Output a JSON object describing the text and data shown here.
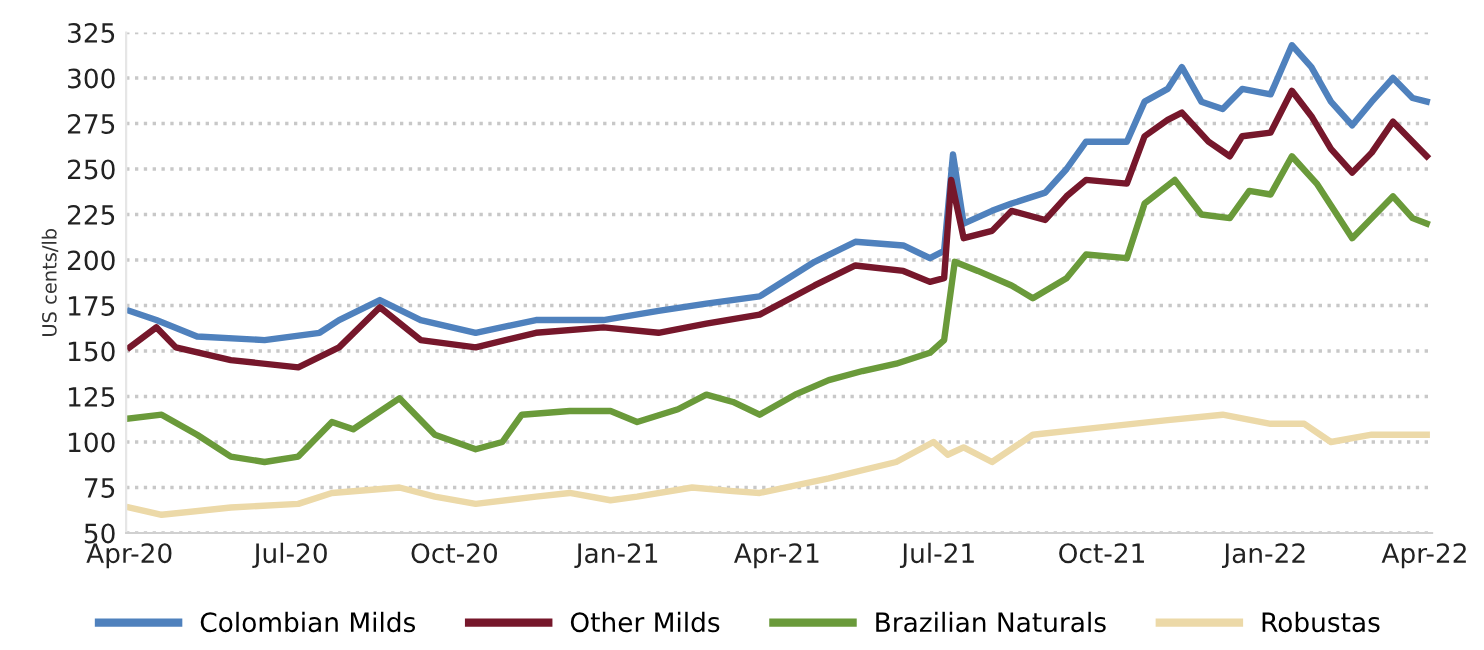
{
  "chart_data": {
    "type": "line",
    "ylabel": "US cents/lb",
    "xlim": [
      "2020-03-30",
      "2022-04-05"
    ],
    "xticks": [
      {
        "value": "2020-04-01",
        "label": "Apr-20"
      },
      {
        "value": "2020-07-01",
        "label": "Jul-20"
      },
      {
        "value": "2020-10-01",
        "label": "Oct-20"
      },
      {
        "value": "2021-01-01",
        "label": "Jan-21"
      },
      {
        "value": "2021-04-01",
        "label": "Apr-21"
      },
      {
        "value": "2021-07-01",
        "label": "Jul-21"
      },
      {
        "value": "2021-10-01",
        "label": "Oct-21"
      },
      {
        "value": "2022-01-01",
        "label": "Jan-22"
      },
      {
        "value": "2022-04-01",
        "label": "Apr-22"
      }
    ],
    "ylim": [
      50,
      325
    ],
    "yticks": [
      50,
      75,
      100,
      125,
      150,
      175,
      200,
      225,
      250,
      275,
      300,
      325
    ],
    "grid": "y",
    "legend": "bottom",
    "marker": "none",
    "line_style": "solid",
    "series": [
      {
        "name": "Colombian Milds",
        "color": "#4f81bd",
        "x": [
          "2020-04-01",
          "2020-04-16",
          "2020-05-09",
          "2020-06-16",
          "2020-07-17",
          "2020-07-28",
          "2020-08-20",
          "2020-09-12",
          "2020-10-13",
          "2020-11-16",
          "2020-12-24",
          "2021-01-24",
          "2021-02-20",
          "2021-03-22",
          "2021-04-22",
          "2021-05-15",
          "2021-06-11",
          "2021-06-26",
          "2021-07-04",
          "2021-07-09",
          "2021-07-15",
          "2021-07-31",
          "2021-08-11",
          "2021-08-30",
          "2021-09-11",
          "2021-09-22",
          "2021-10-15",
          "2021-10-25",
          "2021-11-07",
          "2021-11-15",
          "2021-11-26",
          "2021-12-08",
          "2021-12-19",
          "2022-01-04",
          "2022-01-16",
          "2022-01-27",
          "2022-02-07",
          "2022-02-19",
          "2022-03-02",
          "2022-03-14",
          "2022-03-25",
          "2022-04-02"
        ],
        "values": [
          172,
          167,
          158,
          156,
          160,
          167,
          178,
          167,
          160,
          167,
          167,
          172,
          176,
          180,
          199,
          210,
          208,
          201,
          205,
          258,
          220,
          227,
          231,
          237,
          250,
          265,
          265,
          287,
          294,
          306,
          287,
          283,
          294,
          291,
          318,
          306,
          287,
          274,
          287,
          300,
          289,
          287
        ]
      },
      {
        "name": "Other Milds",
        "color": "#76172b",
        "x": [
          "2020-04-01",
          "2020-04-16",
          "2020-04-27",
          "2020-05-28",
          "2020-07-05",
          "2020-07-28",
          "2020-08-20",
          "2020-09-12",
          "2020-10-13",
          "2020-11-16",
          "2020-12-24",
          "2021-01-24",
          "2021-02-20",
          "2021-03-22",
          "2021-04-22",
          "2021-05-15",
          "2021-06-11",
          "2021-06-26",
          "2021-07-04",
          "2021-07-08",
          "2021-07-15",
          "2021-07-31",
          "2021-08-11",
          "2021-08-30",
          "2021-09-11",
          "2021-09-22",
          "2021-10-15",
          "2021-10-25",
          "2021-11-07",
          "2021-11-15",
          "2021-11-30",
          "2021-12-12",
          "2021-12-19",
          "2022-01-04",
          "2022-01-16",
          "2022-01-27",
          "2022-02-07",
          "2022-02-19",
          "2022-03-02",
          "2022-03-14",
          "2022-03-25",
          "2022-04-02"
        ],
        "values": [
          152,
          163,
          152,
          145,
          141,
          152,
          174,
          156,
          152,
          160,
          163,
          160,
          165,
          170,
          186,
          197,
          194,
          188,
          190,
          244,
          212,
          216,
          227,
          222,
          235,
          244,
          242,
          268,
          277,
          281,
          265,
          257,
          268,
          270,
          293,
          279,
          261,
          248,
          259,
          276,
          265,
          257
        ]
      },
      {
        "name": "Brazilian Naturals",
        "color": "#6a9a3a",
        "x": [
          "2020-04-01",
          "2020-04-19",
          "2020-05-09",
          "2020-05-28",
          "2020-06-16",
          "2020-07-05",
          "2020-07-24",
          "2020-08-05",
          "2020-08-31",
          "2020-09-20",
          "2020-10-13",
          "2020-10-28",
          "2020-11-08",
          "2020-12-05",
          "2020-12-28",
          "2021-01-12",
          "2021-02-04",
          "2021-02-20",
          "2021-03-07",
          "2021-03-22",
          "2021-04-11",
          "2021-04-30",
          "2021-05-19",
          "2021-06-07",
          "2021-06-26",
          "2021-07-04",
          "2021-07-10",
          "2021-07-23",
          "2021-08-11",
          "2021-08-23",
          "2021-09-11",
          "2021-09-22",
          "2021-10-15",
          "2021-10-25",
          "2021-11-11",
          "2021-11-26",
          "2021-12-12",
          "2021-12-23",
          "2022-01-04",
          "2022-01-16",
          "2022-01-30",
          "2022-02-19",
          "2022-03-02",
          "2022-03-14",
          "2022-03-25",
          "2022-04-02"
        ],
        "values": [
          113,
          115,
          104,
          92,
          89,
          92,
          111,
          107,
          124,
          104,
          96,
          100,
          115,
          117,
          117,
          111,
          118,
          126,
          122,
          115,
          126,
          134,
          139,
          143,
          149,
          156,
          199,
          194,
          186,
          179,
          190,
          203,
          201,
          231,
          244,
          225,
          223,
          238,
          236,
          257,
          242,
          212,
          223,
          235,
          223,
          220
        ]
      },
      {
        "name": "Robustas",
        "color": "#ecd9a8",
        "x": [
          "2020-04-01",
          "2020-04-19",
          "2020-05-28",
          "2020-07-05",
          "2020-07-24",
          "2020-08-31",
          "2020-09-20",
          "2020-10-13",
          "2020-11-16",
          "2020-12-05",
          "2020-12-28",
          "2021-01-12",
          "2021-02-12",
          "2021-03-07",
          "2021-03-22",
          "2021-04-30",
          "2021-06-07",
          "2021-06-28",
          "2021-07-06",
          "2021-07-15",
          "2021-07-31",
          "2021-08-23",
          "2021-09-30",
          "2021-11-07",
          "2021-12-08",
          "2022-01-04",
          "2022-01-23",
          "2022-02-07",
          "2022-03-02",
          "2022-04-02"
        ],
        "values": [
          64,
          60,
          64,
          66,
          72,
          75,
          70,
          66,
          70,
          72,
          68,
          70,
          75,
          73,
          72,
          80,
          89,
          100,
          93,
          97,
          89,
          104,
          108,
          112,
          115,
          110,
          110,
          100,
          104,
          104
        ]
      }
    ]
  }
}
